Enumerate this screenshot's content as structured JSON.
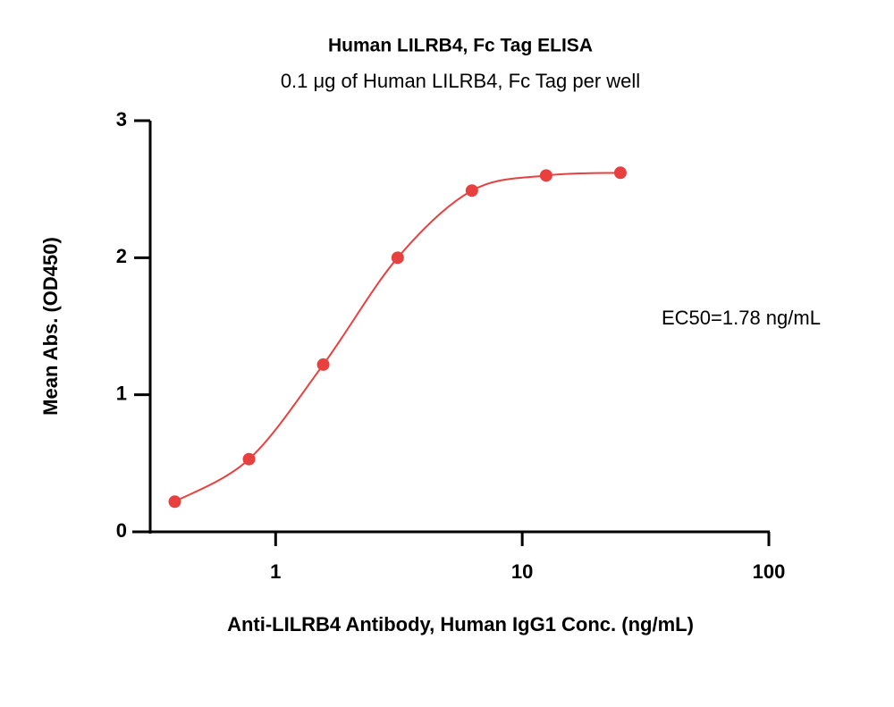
{
  "chart_data": {
    "type": "scatter",
    "title": "Human LILRB4, Fc Tag ELISA",
    "subtitle": "0.1 μg of Human LILRB4, Fc Tag per well",
    "x_label": "Anti-LILRB4 Antibody, Human IgG1 Conc. (ng/mL)",
    "y_label": "Mean Abs. (OD450)",
    "annotation": "EC50=1.78 ng/mL",
    "x": [
      0.39,
      0.78,
      1.56,
      3.125,
      6.25,
      12.5,
      25
    ],
    "series": [
      {
        "color": "#e8403f",
        "values": [
          0.22,
          0.53,
          1.22,
          2.0,
          2.49,
          2.6,
          2.62
        ]
      }
    ],
    "xlim": [
      0.31,
      100
    ],
    "xticks": [
      1,
      10,
      100
    ],
    "xscale": "log",
    "ylim": [
      0,
      3
    ],
    "yticks": [
      0,
      1,
      2,
      3
    ],
    "fit_line": true
  }
}
